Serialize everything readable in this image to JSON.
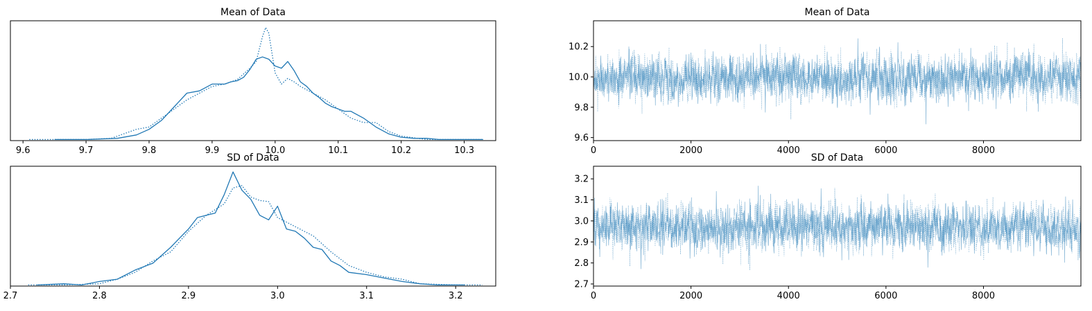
{
  "chart_data": [
    {
      "id": "kde-mean",
      "type": "line",
      "title": "Mean of Data",
      "xlabel": "",
      "ylabel": "",
      "xlim": [
        9.58,
        10.35
      ],
      "ylim": [
        0,
        1.06
      ],
      "xticks": [
        "9.6",
        "9.7",
        "9.8",
        "9.9",
        "10.0",
        "10.1",
        "10.2",
        "10.3"
      ],
      "yticks": [],
      "color": "#1f77b4",
      "series": [
        {
          "style": "solid",
          "x": [
            9.65,
            9.7,
            9.75,
            9.78,
            9.8,
            9.82,
            9.84,
            9.86,
            9.88,
            9.9,
            9.91,
            9.92,
            9.93,
            9.94,
            9.95,
            9.96,
            9.97,
            9.98,
            9.99,
            10.0,
            10.01,
            10.02,
            10.03,
            10.04,
            10.05,
            10.06,
            10.07,
            10.08,
            10.09,
            10.1,
            10.11,
            10.12,
            10.14,
            10.16,
            10.18,
            10.2,
            10.22,
            10.24,
            10.26,
            10.3,
            10.33
          ],
          "y": [
            0.01,
            0.01,
            0.02,
            0.05,
            0.1,
            0.18,
            0.3,
            0.42,
            0.44,
            0.5,
            0.5,
            0.5,
            0.52,
            0.53,
            0.56,
            0.63,
            0.72,
            0.74,
            0.72,
            0.66,
            0.64,
            0.7,
            0.62,
            0.52,
            0.48,
            0.42,
            0.38,
            0.33,
            0.3,
            0.28,
            0.26,
            0.26,
            0.2,
            0.12,
            0.06,
            0.03,
            0.02,
            0.02,
            0.01,
            0.01,
            0.01
          ]
        },
        {
          "style": "dotted",
          "x": [
            9.61,
            9.65,
            9.7,
            9.74,
            9.76,
            9.78,
            9.8,
            9.82,
            9.84,
            9.86,
            9.88,
            9.9,
            9.92,
            9.94,
            9.96,
            9.97,
            9.98,
            9.985,
            9.99,
            10.0,
            10.01,
            10.02,
            10.03,
            10.04,
            10.06,
            10.08,
            10.1,
            10.12,
            10.14,
            10.16,
            10.18,
            10.2,
            10.24,
            10.3,
            10.33
          ],
          "y": [
            0.01,
            0.01,
            0.01,
            0.02,
            0.06,
            0.1,
            0.12,
            0.2,
            0.28,
            0.36,
            0.42,
            0.48,
            0.5,
            0.54,
            0.64,
            0.7,
            0.92,
            1.0,
            0.95,
            0.6,
            0.5,
            0.55,
            0.52,
            0.48,
            0.42,
            0.36,
            0.28,
            0.2,
            0.16,
            0.16,
            0.08,
            0.04,
            0.01,
            0.01,
            0.01
          ]
        }
      ]
    },
    {
      "id": "trace-mean",
      "type": "line",
      "title": "Mean of Data",
      "xlabel": "",
      "ylabel": "",
      "xlim": [
        0,
        9999
      ],
      "ylim": [
        9.58,
        10.37
      ],
      "xticks": [
        "0",
        "2000",
        "4000",
        "6000",
        "8000"
      ],
      "yticks": [
        "9.6",
        "9.8",
        "10.0",
        "10.2"
      ],
      "color": "#1f77b4",
      "n_samples": 10000,
      "center": 9.99,
      "sd": 0.1,
      "series": [
        {
          "style": "solid"
        },
        {
          "style": "dotted"
        }
      ]
    },
    {
      "id": "kde-sd",
      "type": "line",
      "title": "SD of Data",
      "xlabel": "",
      "ylabel": "",
      "xlim": [
        2.7,
        3.245
      ],
      "ylim": [
        0,
        1.05
      ],
      "xticks": [
        "2.7",
        "2.8",
        "2.9",
        "3.0",
        "3.1",
        "3.2"
      ],
      "yticks": [],
      "color": "#1f77b4",
      "series": [
        {
          "style": "solid",
          "x": [
            2.73,
            2.76,
            2.78,
            2.8,
            2.82,
            2.84,
            2.86,
            2.88,
            2.9,
            2.91,
            2.92,
            2.93,
            2.94,
            2.95,
            2.96,
            2.97,
            2.98,
            2.99,
            3.0,
            3.01,
            3.02,
            3.03,
            3.04,
            3.05,
            3.06,
            3.07,
            3.08,
            3.1,
            3.12,
            3.14,
            3.16,
            3.18,
            3.21
          ],
          "y": [
            0.01,
            0.02,
            0.01,
            0.04,
            0.06,
            0.14,
            0.2,
            0.34,
            0.5,
            0.6,
            0.62,
            0.64,
            0.8,
            1.0,
            0.84,
            0.76,
            0.62,
            0.58,
            0.7,
            0.5,
            0.48,
            0.42,
            0.34,
            0.32,
            0.22,
            0.18,
            0.12,
            0.1,
            0.07,
            0.04,
            0.02,
            0.01,
            0.01
          ]
        },
        {
          "style": "dotted",
          "x": [
            2.72,
            2.76,
            2.8,
            2.82,
            2.84,
            2.86,
            2.88,
            2.9,
            2.92,
            2.94,
            2.95,
            2.96,
            2.97,
            2.98,
            2.99,
            3.0,
            3.01,
            3.02,
            3.04,
            3.06,
            3.08,
            3.1,
            3.12,
            3.14,
            3.16,
            3.2,
            3.23
          ],
          "y": [
            0.01,
            0.01,
            0.02,
            0.06,
            0.12,
            0.22,
            0.3,
            0.48,
            0.62,
            0.72,
            0.86,
            0.88,
            0.78,
            0.75,
            0.74,
            0.6,
            0.56,
            0.52,
            0.44,
            0.3,
            0.18,
            0.12,
            0.08,
            0.06,
            0.02,
            0.01,
            0.01
          ]
        }
      ]
    },
    {
      "id": "trace-sd",
      "type": "line",
      "title": "SD of Data",
      "xlabel": "",
      "ylabel": "",
      "xlim": [
        0,
        9999
      ],
      "ylim": [
        2.69,
        3.26
      ],
      "xticks": [
        "0",
        "2000",
        "4000",
        "6000",
        "8000"
      ],
      "yticks": [
        "2.7",
        "2.8",
        "2.9",
        "3.0",
        "3.1",
        "3.2"
      ],
      "color": "#1f77b4",
      "n_samples": 10000,
      "center": 2.97,
      "sd": 0.075,
      "series": [
        {
          "style": "solid"
        },
        {
          "style": "dotted"
        }
      ]
    }
  ]
}
